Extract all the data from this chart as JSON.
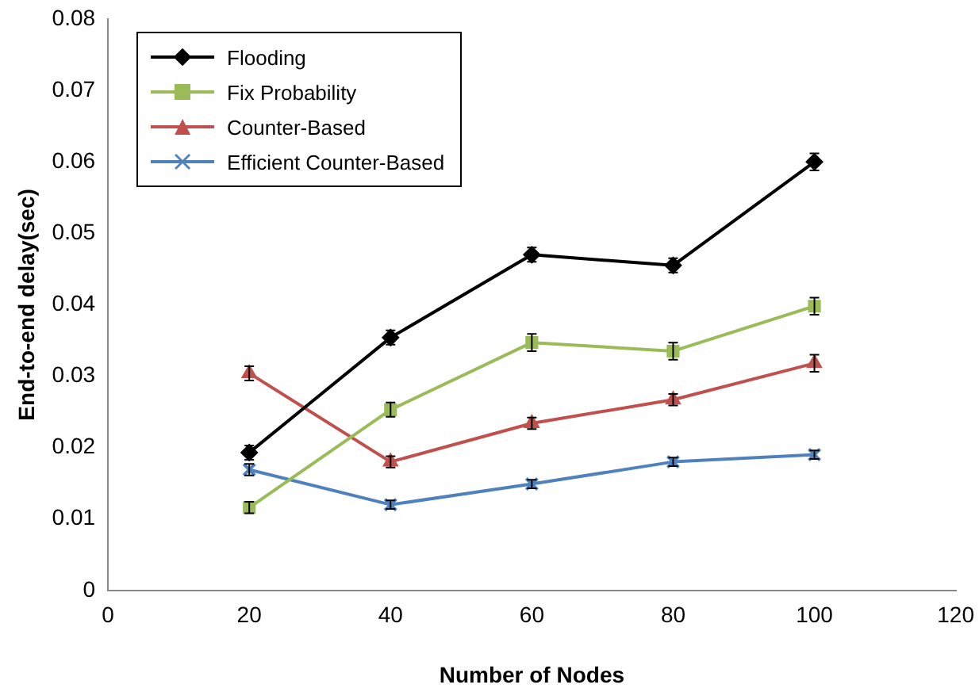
{
  "chart_data": {
    "type": "line",
    "xlabel": "Number of Nodes",
    "ylabel": "End-to-end delay(sec)",
    "x": [
      20,
      40,
      60,
      80,
      100
    ],
    "series": [
      {
        "name": "Flooding",
        "color": "#000000",
        "marker": "diamond",
        "values": [
          0.0193,
          0.0354,
          0.047,
          0.0455,
          0.06
        ],
        "errors": [
          0.001,
          0.001,
          0.001,
          0.001,
          0.0012
        ]
      },
      {
        "name": "Fix Probability",
        "color": "#9bbb59",
        "marker": "square",
        "values": [
          0.0116,
          0.0253,
          0.0347,
          0.0335,
          0.0398
        ],
        "errors": [
          0.0008,
          0.001,
          0.0012,
          0.0012,
          0.0012
        ]
      },
      {
        "name": "Counter-Based",
        "color": "#c0504d",
        "marker": "triangle",
        "values": [
          0.0304,
          0.018,
          0.0234,
          0.0267,
          0.0318
        ],
        "errors": [
          0.001,
          0.0008,
          0.0008,
          0.0008,
          0.0012
        ]
      },
      {
        "name": "Efficient Counter-Based",
        "color": "#4f81bd",
        "marker": "cross",
        "values": [
          0.0169,
          0.012,
          0.0149,
          0.018,
          0.019
        ],
        "errors": [
          0.0008,
          0.0006,
          0.0006,
          0.0006,
          0.0006
        ]
      }
    ],
    "xlim": [
      0,
      120
    ],
    "xticks": [
      0,
      20,
      40,
      60,
      80,
      100,
      120
    ],
    "ylim": [
      0,
      0.08
    ],
    "yticks": [
      0,
      0.01,
      0.02,
      0.03,
      0.04,
      0.05,
      0.06,
      0.07,
      0.08
    ],
    "grid": false,
    "legend": "top left",
    "line_style": "solid"
  }
}
